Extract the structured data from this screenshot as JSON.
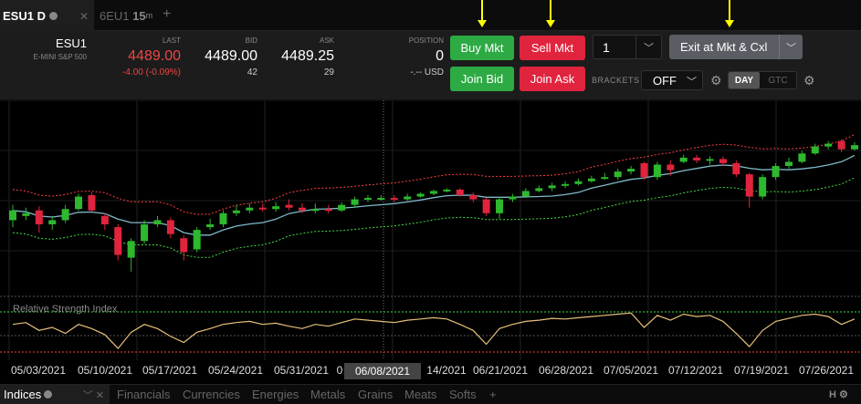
{
  "tabs": [
    {
      "label": "ESU1 D",
      "active": true
    },
    {
      "label": "6EU1",
      "interval": "15",
      "sup": "m",
      "active": false
    }
  ],
  "symbol": {
    "name": "ESU1",
    "desc": "E-MINI S&P 500"
  },
  "quote": {
    "last_label": "LAST",
    "last": "4489.00",
    "change": "-4.00 (-0.09%)",
    "bid_label": "BID",
    "bid": "4489.00",
    "bid_size": "42",
    "ask_label": "ASK",
    "ask": "4489.25",
    "ask_size": "29"
  },
  "position": {
    "label": "POSITION",
    "value": "0",
    "pnl": "-.-- USD"
  },
  "buttons": {
    "buy_mkt": "Buy Mkt",
    "sell_mkt": "Sell Mkt",
    "join_bid": "Join Bid",
    "join_ask": "Join Ask",
    "exit": "Exit at Mkt & Cxl"
  },
  "quantity": "1",
  "brackets": {
    "label": "BRACKETS",
    "value": "OFF"
  },
  "tif": {
    "day": "DAY",
    "gtc": "GTC"
  },
  "rsi_label": "Relative Strength Index",
  "date_labels": [
    "05/03/2021",
    "05/10/2021",
    "05/17/2021",
    "05/24/2021",
    "05/31/2021",
    "0",
    "14/2021",
    "06/21/2021",
    "06/28/2021",
    "07/05/2021",
    "07/12/2021",
    "07/19/2021",
    "07/26/2021"
  ],
  "crosshair_date": "06/08/2021",
  "bottom_tabs": [
    "Indices",
    "Financials",
    "Currencies",
    "Energies",
    "Metals",
    "Grains",
    "Meats",
    "Softs"
  ],
  "colors": {
    "up": "#2eb82e",
    "down": "#e0243e",
    "ma": "#7fb9c9",
    "upper": "#ff4040",
    "lower": "#44dd44",
    "rsi": "#e6c07a"
  },
  "chart_data": {
    "type": "candlestick",
    "candles": [
      {
        "o": 0.55,
        "c": 0.62,
        "h": 0.66,
        "l": 0.5
      },
      {
        "o": 0.58,
        "c": 0.6,
        "h": 0.64,
        "l": 0.55
      },
      {
        "o": 0.62,
        "c": 0.52,
        "h": 0.65,
        "l": 0.46
      },
      {
        "o": 0.52,
        "c": 0.55,
        "h": 0.58,
        "l": 0.48
      },
      {
        "o": 0.55,
        "c": 0.63,
        "h": 0.66,
        "l": 0.53
      },
      {
        "o": 0.63,
        "c": 0.72,
        "h": 0.74,
        "l": 0.62
      },
      {
        "o": 0.73,
        "c": 0.62,
        "h": 0.75,
        "l": 0.6
      },
      {
        "o": 0.58,
        "c": 0.52,
        "h": 0.6,
        "l": 0.48
      },
      {
        "o": 0.5,
        "c": 0.3,
        "h": 0.52,
        "l": 0.26
      },
      {
        "o": 0.28,
        "c": 0.4,
        "h": 0.42,
        "l": 0.18
      },
      {
        "o": 0.4,
        "c": 0.52,
        "h": 0.55,
        "l": 0.38
      },
      {
        "o": 0.52,
        "c": 0.55,
        "h": 0.58,
        "l": 0.5
      },
      {
        "o": 0.55,
        "c": 0.45,
        "h": 0.57,
        "l": 0.42
      },
      {
        "o": 0.42,
        "c": 0.32,
        "h": 0.44,
        "l": 0.26
      },
      {
        "o": 0.34,
        "c": 0.48,
        "h": 0.5,
        "l": 0.32
      },
      {
        "o": 0.5,
        "c": 0.52,
        "h": 0.56,
        "l": 0.48
      },
      {
        "o": 0.52,
        "c": 0.6,
        "h": 0.62,
        "l": 0.5
      },
      {
        "o": 0.6,
        "c": 0.62,
        "h": 0.66,
        "l": 0.58
      },
      {
        "o": 0.62,
        "c": 0.64,
        "h": 0.67,
        "l": 0.6
      },
      {
        "o": 0.64,
        "c": 0.63,
        "h": 0.67,
        "l": 0.61
      },
      {
        "o": 0.63,
        "c": 0.65,
        "h": 0.68,
        "l": 0.61
      },
      {
        "o": 0.66,
        "c": 0.64,
        "h": 0.7,
        "l": 0.62
      },
      {
        "o": 0.64,
        "c": 0.62,
        "h": 0.67,
        "l": 0.6
      },
      {
        "o": 0.62,
        "c": 0.63,
        "h": 0.67,
        "l": 0.6
      },
      {
        "o": 0.63,
        "c": 0.62,
        "h": 0.66,
        "l": 0.6
      },
      {
        "o": 0.62,
        "c": 0.66,
        "h": 0.68,
        "l": 0.61
      },
      {
        "o": 0.66,
        "c": 0.7,
        "h": 0.72,
        "l": 0.64
      },
      {
        "o": 0.7,
        "c": 0.71,
        "h": 0.73,
        "l": 0.68
      },
      {
        "o": 0.71,
        "c": 0.71,
        "h": 0.73,
        "l": 0.69
      },
      {
        "o": 0.71,
        "c": 0.7,
        "h": 0.73,
        "l": 0.68
      },
      {
        "o": 0.7,
        "c": 0.72,
        "h": 0.74,
        "l": 0.69
      },
      {
        "o": 0.72,
        "c": 0.74,
        "h": 0.75,
        "l": 0.71
      },
      {
        "o": 0.74,
        "c": 0.76,
        "h": 0.77,
        "l": 0.73
      },
      {
        "o": 0.76,
        "c": 0.77,
        "h": 0.78,
        "l": 0.75
      },
      {
        "o": 0.77,
        "c": 0.73,
        "h": 0.78,
        "l": 0.72
      },
      {
        "o": 0.73,
        "c": 0.7,
        "h": 0.75,
        "l": 0.68
      },
      {
        "o": 0.7,
        "c": 0.6,
        "h": 0.71,
        "l": 0.58
      },
      {
        "o": 0.6,
        "c": 0.7,
        "h": 0.72,
        "l": 0.56
      },
      {
        "o": 0.7,
        "c": 0.72,
        "h": 0.74,
        "l": 0.68
      },
      {
        "o": 0.72,
        "c": 0.76,
        "h": 0.78,
        "l": 0.71
      },
      {
        "o": 0.76,
        "c": 0.78,
        "h": 0.8,
        "l": 0.75
      },
      {
        "o": 0.78,
        "c": 0.8,
        "h": 0.82,
        "l": 0.76
      },
      {
        "o": 0.8,
        "c": 0.81,
        "h": 0.83,
        "l": 0.78
      },
      {
        "o": 0.81,
        "c": 0.83,
        "h": 0.85,
        "l": 0.8
      },
      {
        "o": 0.83,
        "c": 0.85,
        "h": 0.87,
        "l": 0.82
      },
      {
        "o": 0.85,
        "c": 0.86,
        "h": 0.89,
        "l": 0.84
      },
      {
        "o": 0.86,
        "c": 0.9,
        "h": 0.92,
        "l": 0.84
      },
      {
        "o": 0.9,
        "c": 0.92,
        "h": 0.94,
        "l": 0.88
      },
      {
        "o": 0.96,
        "c": 0.86,
        "h": 0.97,
        "l": 0.84
      },
      {
        "o": 0.86,
        "c": 0.95,
        "h": 0.97,
        "l": 0.84
      },
      {
        "o": 0.95,
        "c": 0.91,
        "h": 0.98,
        "l": 0.87
      },
      {
        "o": 0.97,
        "c": 1.0,
        "h": 1.02,
        "l": 0.96
      },
      {
        "o": 1.0,
        "c": 0.98,
        "h": 1.02,
        "l": 0.96
      },
      {
        "o": 0.98,
        "c": 0.99,
        "h": 1.01,
        "l": 0.95
      },
      {
        "o": 0.99,
        "c": 0.96,
        "h": 1.01,
        "l": 0.94
      },
      {
        "o": 0.96,
        "c": 0.88,
        "h": 0.98,
        "l": 0.86
      },
      {
        "o": 0.88,
        "c": 0.72,
        "h": 0.89,
        "l": 0.64
      },
      {
        "o": 0.72,
        "c": 0.86,
        "h": 0.88,
        "l": 0.7
      },
      {
        "o": 0.86,
        "c": 0.94,
        "h": 0.96,
        "l": 0.84
      },
      {
        "o": 0.94,
        "c": 0.97,
        "h": 1.0,
        "l": 0.92
      },
      {
        "o": 0.97,
        "c": 1.03,
        "h": 1.05,
        "l": 0.96
      },
      {
        "o": 1.03,
        "c": 1.08,
        "h": 1.1,
        "l": 1.02
      },
      {
        "o": 1.08,
        "c": 1.1,
        "h": 1.12,
        "l": 1.06
      },
      {
        "o": 1.12,
        "c": 1.06,
        "h": 1.13,
        "l": 1.04
      },
      {
        "o": 1.06,
        "c": 1.09,
        "h": 1.11,
        "l": 1.05
      }
    ],
    "rsi": [
      0.55,
      0.58,
      0.45,
      0.5,
      0.4,
      0.55,
      0.48,
      0.38,
      0.15,
      0.42,
      0.55,
      0.48,
      0.35,
      0.25,
      0.42,
      0.48,
      0.55,
      0.58,
      0.6,
      0.55,
      0.57,
      0.52,
      0.48,
      0.55,
      0.52,
      0.58,
      0.64,
      0.62,
      0.6,
      0.58,
      0.62,
      0.64,
      0.66,
      0.64,
      0.55,
      0.45,
      0.22,
      0.48,
      0.55,
      0.6,
      0.62,
      0.65,
      0.64,
      0.66,
      0.68,
      0.7,
      0.72,
      0.74,
      0.5,
      0.7,
      0.62,
      0.72,
      0.68,
      0.7,
      0.6,
      0.4,
      0.18,
      0.45,
      0.6,
      0.65,
      0.7,
      0.72,
      0.68,
      0.55,
      0.64
    ]
  }
}
